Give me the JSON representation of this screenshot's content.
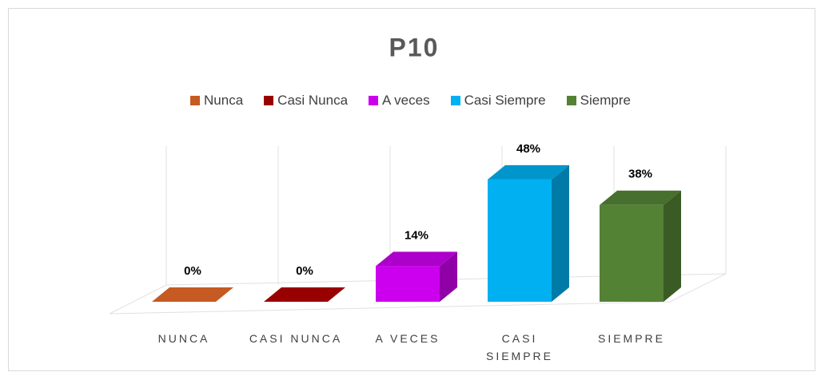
{
  "chart_data": {
    "type": "bar3d",
    "title": "P10",
    "legend": [
      "Nunca",
      "Casi Nunca",
      "A veces",
      "Casi Siempre",
      "Siempre"
    ],
    "categories": [
      "NUNCA",
      "CASI NUNCA",
      "A VECES",
      "CASI SIEMPRE",
      "SIEMPRE"
    ],
    "values": [
      0,
      0,
      14,
      48,
      38
    ],
    "value_labels": [
      "0%",
      "0%",
      "14%",
      "48%",
      "38%"
    ],
    "colors": [
      "#c55a22",
      "#990000",
      "#cc00ee",
      "#00b0f0",
      "#548235"
    ],
    "legend_position": "top"
  }
}
